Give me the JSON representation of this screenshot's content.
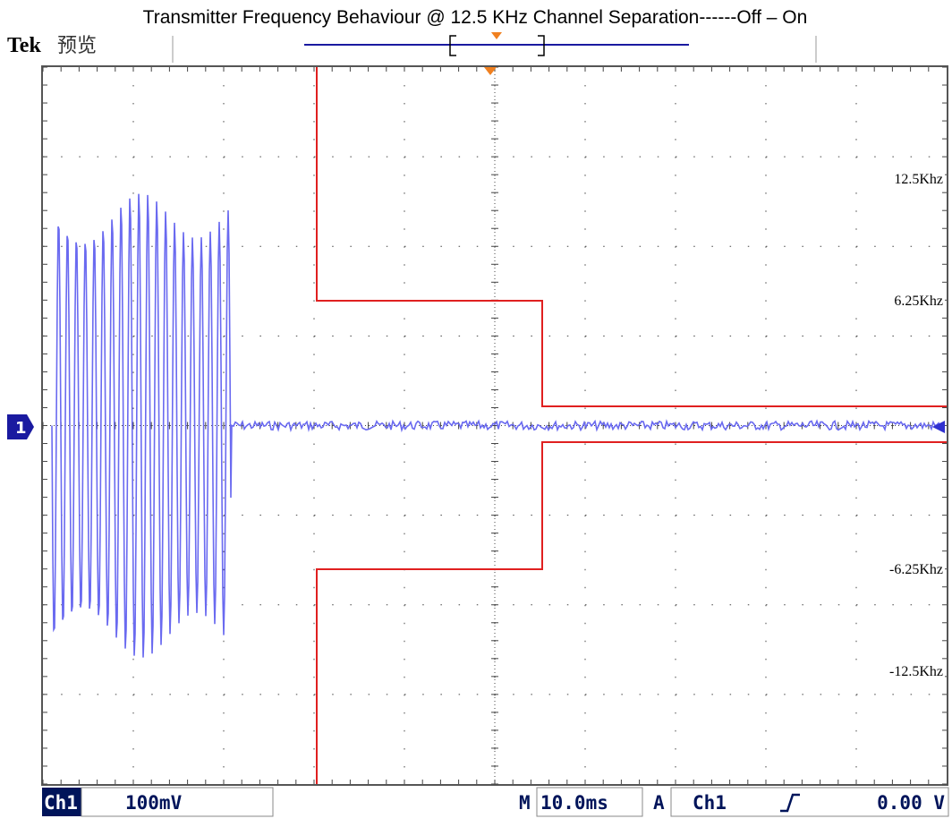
{
  "title": "Transmitter Frequency Behaviour @ 12.5 KHz Channel Separation------Off – On",
  "header": {
    "brand": "Tek",
    "mode": "预览"
  },
  "channel_marker": "1",
  "mask_labels": [
    "12.5Khz",
    "6.25Khz",
    "-6.25Khz",
    "-12.5Khz"
  ],
  "status": {
    "channel": "Ch1",
    "scale": "100mV",
    "time_prefix": "M",
    "timebase": "10.0ms",
    "trigger_prefix": "A",
    "trigger_source": "Ch1",
    "trigger_level": "0.00 V"
  }
}
